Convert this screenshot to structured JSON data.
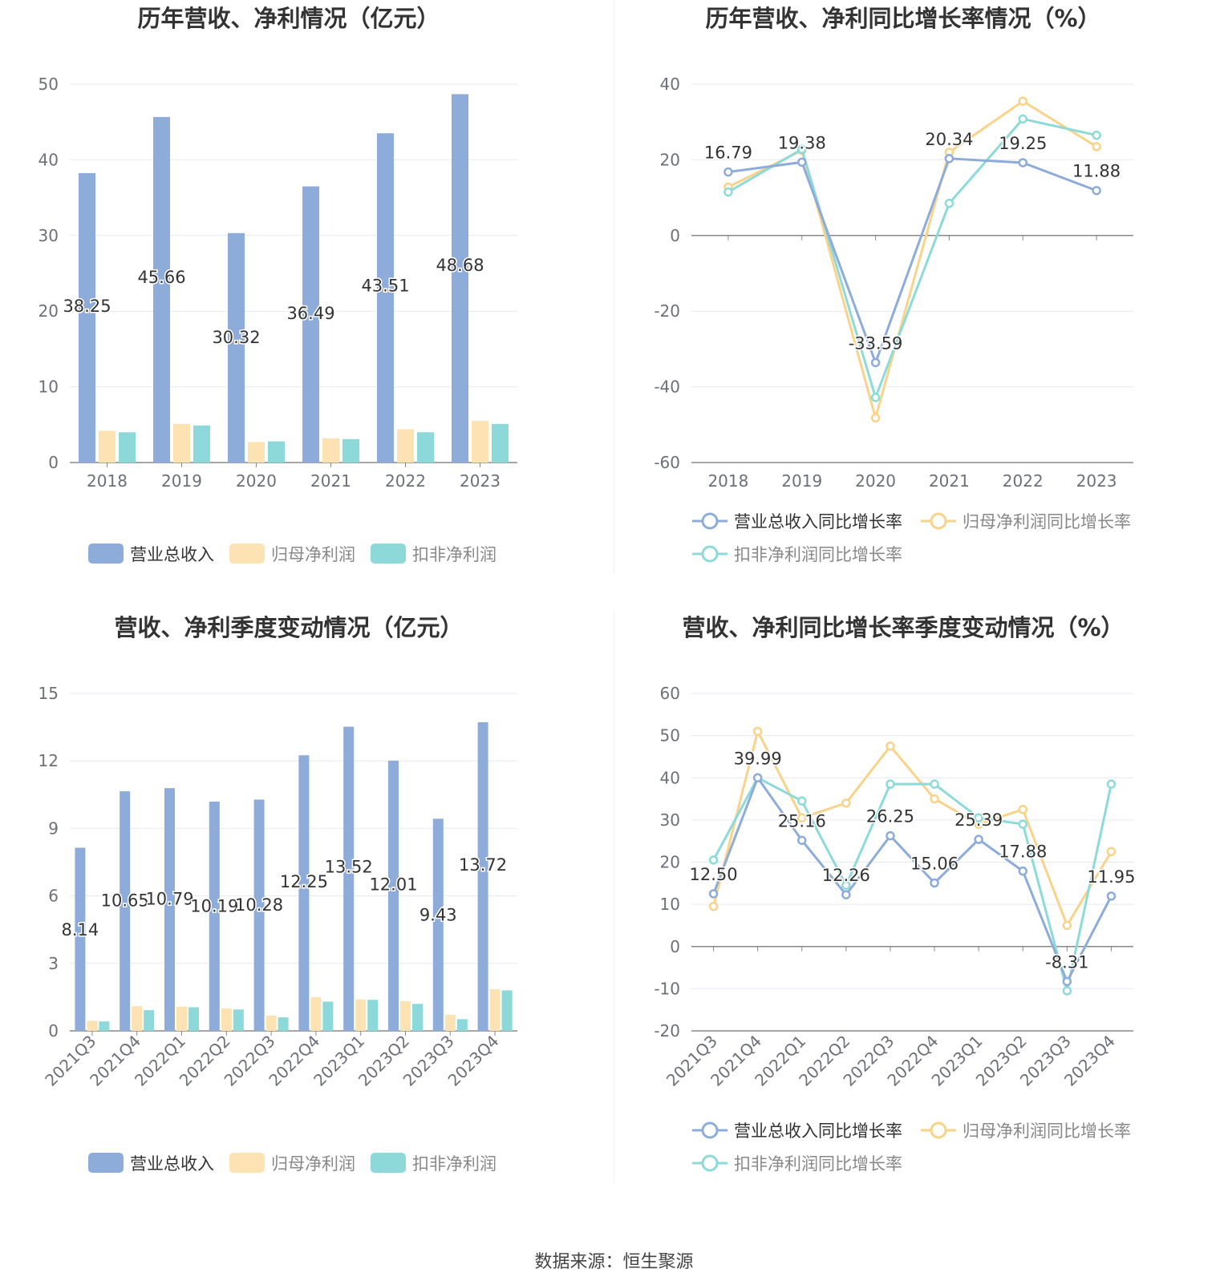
{
  "colors": {
    "revenue": "#8eacda",
    "net_profit": "#fde3b4",
    "deducted_profit": "#8dd8d8",
    "revenue_line": "#8eacda",
    "net_profit_line": "#fad38a",
    "deducted_profit_line": "#8ddbd8"
  },
  "footer": {
    "source": "数据来源：恒生聚源"
  },
  "chart_data": [
    {
      "type": "bar",
      "title": "历年营收、净利情况（亿元）",
      "categories": [
        "2018",
        "2019",
        "2020",
        "2021",
        "2022",
        "2023"
      ],
      "ylim": [
        0,
        50
      ],
      "yticks": [
        "0",
        "10",
        "20",
        "30",
        "40",
        "50"
      ],
      "series": [
        {
          "name": "营业总收入",
          "values": [
            38.25,
            45.66,
            30.32,
            36.49,
            43.51,
            48.68
          ],
          "labels": [
            "38.25",
            "45.66",
            "30.32",
            "36.49",
            "43.51",
            "48.68"
          ]
        },
        {
          "name": "归母净利润",
          "values": [
            4.2,
            5.1,
            2.7,
            3.2,
            4.4,
            5.5
          ]
        },
        {
          "name": "扣非净利润",
          "values": [
            4.0,
            4.9,
            2.8,
            3.1,
            4.0,
            5.1
          ]
        }
      ]
    },
    {
      "type": "line",
      "title": "历年营收、净利同比增长率情况（%）",
      "categories": [
        "2018",
        "2019",
        "2020",
        "2021",
        "2022",
        "2023"
      ],
      "ylim": [
        -60,
        40
      ],
      "yticks": [
        "-60",
        "-40",
        "-20",
        "0",
        "20",
        "40"
      ],
      "series": [
        {
          "name": "营业总收入同比增长率",
          "values": [
            16.79,
            19.38,
            -33.59,
            20.34,
            19.25,
            11.88
          ],
          "labels": [
            "16.79",
            "19.38",
            "-33.59",
            "20.34",
            "19.25",
            "11.88"
          ]
        },
        {
          "name": "归母净利润同比增长率",
          "values": [
            12.8,
            22.5,
            -48.2,
            22.0,
            35.5,
            23.5
          ]
        },
        {
          "name": "扣非净利润同比增长率",
          "values": [
            11.5,
            22.8,
            -42.8,
            8.5,
            30.8,
            26.5
          ]
        }
      ]
    },
    {
      "type": "bar",
      "title": "营收、净利季度变动情况（亿元）",
      "categories": [
        "2021Q3",
        "2021Q4",
        "2022Q1",
        "2022Q2",
        "2022Q3",
        "2022Q4",
        "2023Q1",
        "2023Q2",
        "2023Q3",
        "2023Q4"
      ],
      "ylim": [
        0,
        15
      ],
      "yticks": [
        "0",
        "3",
        "6",
        "9",
        "12",
        "15"
      ],
      "series": [
        {
          "name": "营业总收入",
          "values": [
            8.14,
            10.65,
            10.79,
            10.19,
            10.28,
            12.25,
            13.52,
            12.01,
            9.43,
            13.72
          ],
          "labels": [
            "8.14",
            "10.65",
            "10.79",
            "10.19",
            "10.28",
            "12.25",
            "13.52",
            "12.01",
            "9.43",
            "13.72"
          ]
        },
        {
          "name": "归母净利润",
          "values": [
            0.45,
            1.1,
            1.08,
            1.0,
            0.68,
            1.5,
            1.4,
            1.32,
            0.72,
            1.85
          ]
        },
        {
          "name": "扣非净利润",
          "values": [
            0.42,
            0.92,
            1.05,
            0.95,
            0.6,
            1.3,
            1.38,
            1.2,
            0.52,
            1.8
          ]
        }
      ]
    },
    {
      "type": "line",
      "title": "营收、净利同比增长率季度变动情况（%）",
      "categories": [
        "2021Q3",
        "2021Q4",
        "2022Q1",
        "2022Q2",
        "2022Q3",
        "2022Q4",
        "2023Q1",
        "2023Q2",
        "2023Q3",
        "2023Q4"
      ],
      "ylim": [
        -20,
        60
      ],
      "yticks": [
        "-20",
        "-10",
        "0",
        "10",
        "20",
        "30",
        "40",
        "50",
        "60"
      ],
      "series": [
        {
          "name": "营业总收入同比增长率",
          "values": [
            12.5,
            39.99,
            25.16,
            12.26,
            26.25,
            15.06,
            25.39,
            17.88,
            -8.31,
            11.95
          ],
          "labels": [
            "12.50",
            "39.99",
            "25.16",
            "12.26",
            "26.25",
            "15.06",
            "25.39",
            "17.88",
            "-8.31",
            "11.95"
          ]
        },
        {
          "name": "归母净利润同比增长率",
          "values": [
            9.5,
            51.0,
            30.5,
            34.0,
            47.5,
            35.0,
            29.0,
            32.5,
            5.0,
            22.5
          ]
        },
        {
          "name": "扣非净利润同比增长率",
          "values": [
            20.5,
            40.0,
            34.5,
            14.5,
            38.5,
            38.5,
            30.5,
            29.0,
            -10.5,
            38.5
          ]
        }
      ]
    }
  ]
}
